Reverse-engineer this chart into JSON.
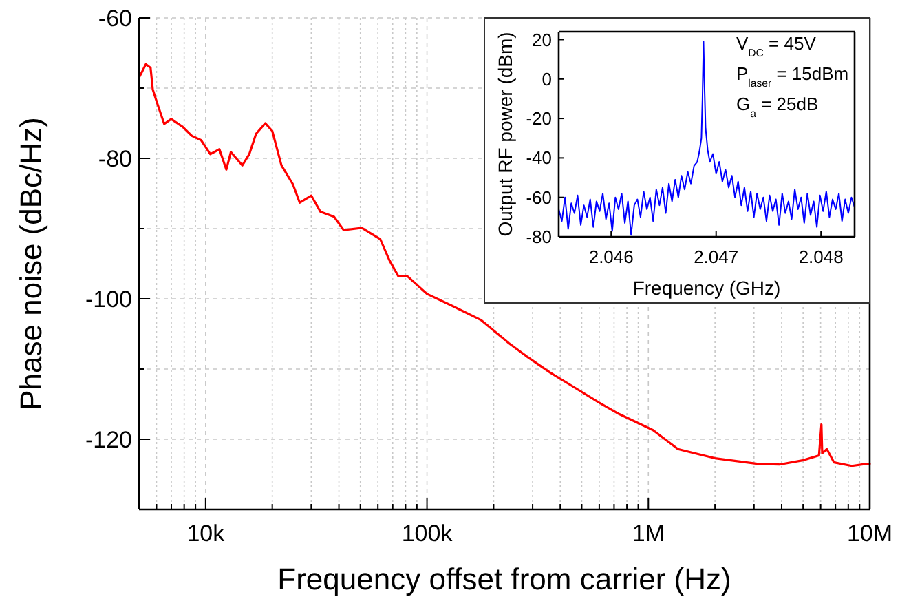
{
  "chart_data": [
    {
      "type": "line",
      "xlabel": "Frequency offset from carrier (Hz)",
      "ylabel": "Phase noise (dBc/Hz)",
      "log": "x",
      "grid": true,
      "xlim": [
        5000,
        10000000
      ],
      "ylim": [
        -130,
        -60
      ],
      "xticks": [
        {
          "value": 6000,
          "label": null
        },
        {
          "value": 7000,
          "label": null
        },
        {
          "value": 8000,
          "label": null
        },
        {
          "value": 9000,
          "label": null
        },
        {
          "value": 10000,
          "label": "10k"
        },
        {
          "value": 20000,
          "label": null
        },
        {
          "value": 30000,
          "label": null
        },
        {
          "value": 40000,
          "label": null
        },
        {
          "value": 50000,
          "label": null
        },
        {
          "value": 60000,
          "label": null
        },
        {
          "value": 70000,
          "label": null
        },
        {
          "value": 80000,
          "label": null
        },
        {
          "value": 90000,
          "label": null
        },
        {
          "value": 100000,
          "label": "100k"
        },
        {
          "value": 200000,
          "label": null
        },
        {
          "value": 300000,
          "label": null
        },
        {
          "value": 400000,
          "label": null
        },
        {
          "value": 500000,
          "label": null
        },
        {
          "value": 600000,
          "label": null
        },
        {
          "value": 700000,
          "label": null
        },
        {
          "value": 800000,
          "label": null
        },
        {
          "value": 900000,
          "label": null
        },
        {
          "value": 1000000,
          "label": "1M"
        },
        {
          "value": 2000000,
          "label": null
        },
        {
          "value": 3000000,
          "label": null
        },
        {
          "value": 4000000,
          "label": null
        },
        {
          "value": 5000000,
          "label": null
        },
        {
          "value": 6000000,
          "label": null
        },
        {
          "value": 7000000,
          "label": null
        },
        {
          "value": 8000000,
          "label": null
        },
        {
          "value": 9000000,
          "label": null
        },
        {
          "value": 10000000,
          "label": "10M"
        }
      ],
      "yticks": [
        -120,
        {
          "value": -110,
          "label": null
        },
        -100,
        {
          "value": -90,
          "label": null
        },
        -80,
        {
          "value": -70,
          "label": null
        },
        -60
      ],
      "series": [
        {
          "color": "#ff0000",
          "x": [
            5000,
            5120,
            5370,
            5640,
            5770,
            6050,
            6500,
            6990,
            7870,
            8670,
            9530,
            10500,
            11540,
            12400,
            13000,
            14650,
            15750,
            16900,
            18600,
            20000,
            22000,
            24800,
            26600,
            30000,
            33000,
            38000,
            42000,
            50700,
            61500,
            67600,
            74300,
            81700,
            100000,
            130000,
            175000,
            234000,
            282000,
            360000,
            457000,
            600000,
            737000,
            1050000,
            1360000,
            2000000,
            3100000,
            3900000,
            4980000,
            5900000,
            6050000,
            6100000,
            6400000,
            6900000,
            8300000,
            9700000,
            10000000
          ],
          "values": [
            -68.5,
            -67.9,
            -66.6,
            -67.1,
            -70.2,
            -72.2,
            -75.1,
            -74.4,
            -75.5,
            -76.8,
            -77.4,
            -79.4,
            -78.7,
            -81.6,
            -79.1,
            -81,
            -79.4,
            -76.5,
            -75,
            -76.1,
            -81,
            -83.7,
            -86.3,
            -85.3,
            -87.6,
            -88.3,
            -90.2,
            -89.9,
            -91.5,
            -94.5,
            -96.8,
            -96.8,
            -99.3,
            -101,
            -103,
            -106.3,
            -108.2,
            -110.5,
            -112.5,
            -114.8,
            -116.4,
            -118.7,
            -121.4,
            -122.7,
            -123.5,
            -123.6,
            -123,
            -122.3,
            -117.9,
            -122,
            -121.4,
            -123.3,
            -123.8,
            -123.5,
            -123.5
          ]
        }
      ]
    },
    {
      "type": "line",
      "xlabel": "Frequency (GHz)",
      "ylabel": "Output RF power (dBm)",
      "grid": false,
      "xlim": [
        2.0455,
        2.04832
      ],
      "ylim": [
        -80,
        24
      ],
      "xticks": [
        2.046,
        2.047,
        2.048
      ],
      "yticks": [
        -80,
        -60,
        -40,
        -20,
        0,
        20
      ],
      "annotations": [
        "V$_{DC}$ = 45V",
        "P$_{laser}$ = 15dBm",
        "G$_{a}$ = 25dB"
      ],
      "series": [
        {
          "color": "#0000ff",
          "x": [
            2.0455,
            2.04553,
            2.04556,
            2.04559,
            2.04562,
            2.04565,
            2.04568,
            2.04571,
            2.04574,
            2.04577,
            2.0458,
            2.04583,
            2.04586,
            2.04589,
            2.04592,
            2.04595,
            2.04598,
            2.04601,
            2.04604,
            2.04607,
            2.0461,
            2.04613,
            2.04616,
            2.04619,
            2.04622,
            2.04625,
            2.04628,
            2.04631,
            2.04634,
            2.04637,
            2.0464,
            2.04643,
            2.04646,
            2.04649,
            2.04652,
            2.04655,
            2.04658,
            2.04661,
            2.04664,
            2.04667,
            2.0467,
            2.04673,
            2.04676,
            2.04679,
            2.04682,
            2.04684,
            2.04686,
            2.04687,
            2.04688,
            2.04689,
            2.0469,
            2.04692,
            2.04694,
            2.04697,
            2.047,
            2.04703,
            2.04706,
            2.04709,
            2.04712,
            2.04715,
            2.04718,
            2.04721,
            2.04724,
            2.04727,
            2.0473,
            2.04733,
            2.04736,
            2.04739,
            2.04742,
            2.04745,
            2.04748,
            2.04751,
            2.04754,
            2.04757,
            2.0476,
            2.04763,
            2.04766,
            2.04769,
            2.04772,
            2.04775,
            2.04778,
            2.04781,
            2.04784,
            2.04787,
            2.0479,
            2.04793,
            2.04796,
            2.04799,
            2.04802,
            2.04805,
            2.04808,
            2.04811,
            2.04814,
            2.04817,
            2.0482,
            2.04823,
            2.04826,
            2.04829,
            2.04832
          ],
          "values": [
            -66,
            -72,
            -60,
            -76,
            -63,
            -68,
            -59,
            -74,
            -64,
            -70,
            -61,
            -75,
            -62,
            -67,
            -58,
            -71,
            -63,
            -77,
            -60,
            -66,
            -58,
            -73,
            -62,
            -79,
            -64,
            -61,
            -70,
            -57,
            -66,
            -60,
            -72,
            -56,
            -64,
            -55,
            -68,
            -53,
            -62,
            -51,
            -60,
            -49,
            -56,
            -47,
            -53,
            -44,
            -42,
            -37,
            -30,
            -10,
            19,
            -5,
            -25,
            -36,
            -42,
            -38,
            -48,
            -42,
            -52,
            -46,
            -55,
            -49,
            -60,
            -52,
            -64,
            -55,
            -67,
            -57,
            -70,
            -58,
            -66,
            -60,
            -72,
            -59,
            -67,
            -61,
            -74,
            -58,
            -68,
            -62,
            -71,
            -56,
            -66,
            -60,
            -73,
            -58,
            -69,
            -62,
            -75,
            -59,
            -67,
            -57,
            -70,
            -61,
            -66,
            -58,
            -72,
            -61,
            -68,
            -60,
            -65
          ]
        }
      ]
    }
  ]
}
